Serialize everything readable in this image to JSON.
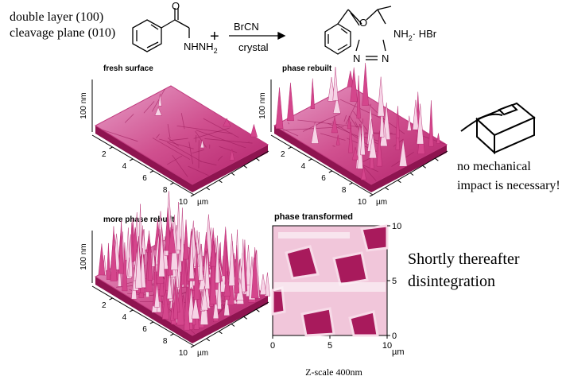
{
  "header": {
    "lines": [
      "double layer (100)",
      "cleavage plane (010)"
    ]
  },
  "reaction": {
    "reactant_o": "O",
    "reactant_amine": {
      "text": "NHNH",
      "sub": "2"
    },
    "plus": "+",
    "reagent": "BrCN",
    "condition": "crystal",
    "product_o": "O",
    "product_n1": "N",
    "product_n2": "N",
    "product_amine": {
      "text": "NH",
      "sub": "2",
      "salt": "· HBr"
    }
  },
  "panels": [
    {
      "title": "fresh surface",
      "z_label": "100 nm",
      "x_ticks": [
        2,
        4,
        6,
        8,
        10
      ],
      "x_unit": "µm"
    },
    {
      "title": "phase rebuilt",
      "z_label": "100 nm",
      "x_ticks": [
        2,
        4,
        6,
        8,
        10
      ],
      "x_unit": "µm"
    },
    {
      "title": "more phase rebuilt",
      "z_label": "100 nm",
      "x_ticks": [
        2,
        4,
        6,
        8,
        10
      ],
      "x_unit": "µm"
    }
  ],
  "image": {
    "title": "phase transformed",
    "x_ticks": [
      0,
      5,
      10
    ],
    "y_ticks": [
      0,
      5,
      10
    ],
    "unit": "µm",
    "caption": "Z-scale 400nm"
  },
  "note": {
    "lines": [
      "no mechanical",
      "impact is necessary!"
    ]
  },
  "conclusion": {
    "lines": [
      "Shortly thereafter",
      "disintegration"
    ]
  }
}
